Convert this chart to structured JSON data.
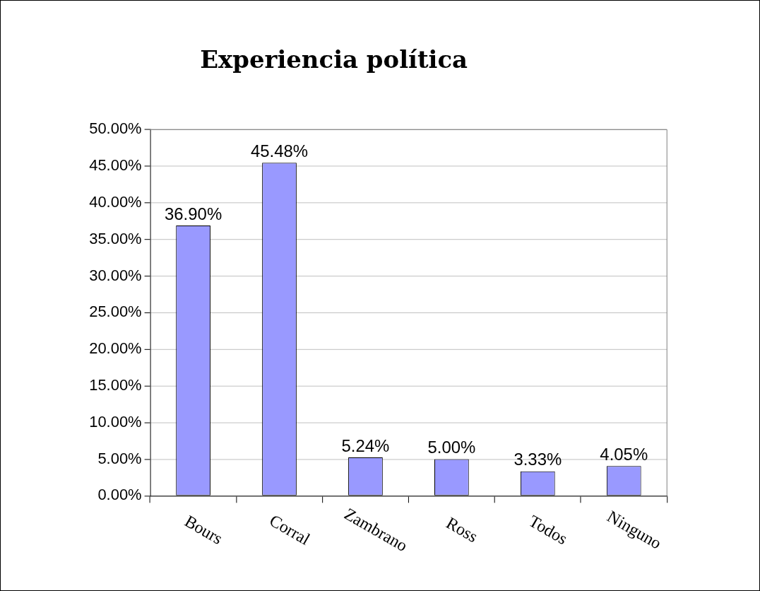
{
  "chart_data": {
    "type": "bar",
    "title": "Experiencia política",
    "categories": [
      "Bours",
      "Corral",
      "Zambrano",
      "Ross",
      "Todos",
      "Ninguno"
    ],
    "values": [
      36.9,
      45.48,
      5.24,
      5.0,
      3.33,
      4.05
    ],
    "color": "#9999ff",
    "value_labels": [
      "36.90%",
      "45.48%",
      "5.24%",
      "5.00%",
      "3.33%",
      "4.05%"
    ],
    "ylim": [
      0,
      50
    ],
    "yticks": [
      {
        "value": 0,
        "label": "0.00%"
      },
      {
        "value": 5,
        "label": "5.00%"
      },
      {
        "value": 10,
        "label": "10.00%"
      },
      {
        "value": 15,
        "label": "15.00%"
      },
      {
        "value": 20,
        "label": "20.00%"
      },
      {
        "value": 25,
        "label": "25.00%"
      },
      {
        "value": 30,
        "label": "30.00%"
      },
      {
        "value": 35,
        "label": "35.00%"
      },
      {
        "value": 40,
        "label": "40.00%"
      },
      {
        "value": 45,
        "label": "45.00%"
      },
      {
        "value": 50,
        "label": "50.00%"
      }
    ],
    "grid": "y",
    "legend": false
  }
}
